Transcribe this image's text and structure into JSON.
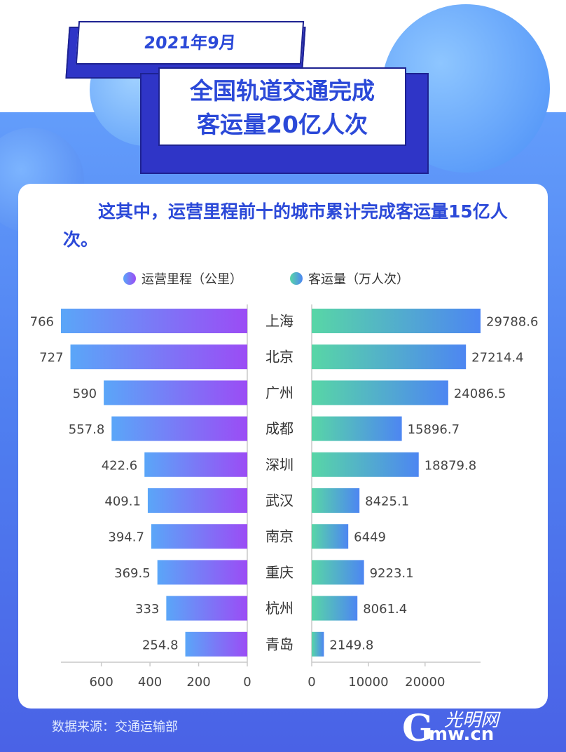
{
  "header": {
    "date": "2021年9月",
    "title_line1": "全国轨道交通完成",
    "title_line2": "客运量20亿人次"
  },
  "subtitle": "这其中，运营里程前十的城市累计完成客运量15亿人次。",
  "legend": {
    "mileage": "运营里程（公里）",
    "passengers": "客运量（万人次）"
  },
  "footer": {
    "source": "数据来源：交通运输部",
    "logo_g": "G",
    "logo_mw": "mw.cn",
    "logo_cn": "光明网"
  },
  "colors": {
    "left_bar_start": "#5aa6f8",
    "left_bar_end": "#9b4cf5",
    "right_bar_start": "#58d6a6",
    "right_bar_end": "#4d86f2",
    "title_blue": "#2b49d8"
  },
  "chart_data": {
    "type": "bar",
    "categories": [
      "上海",
      "北京",
      "广州",
      "成都",
      "深圳",
      "武汉",
      "南京",
      "重庆",
      "杭州",
      "青岛"
    ],
    "series": [
      {
        "name": "运营里程（公里）",
        "values": [
          766,
          727,
          590,
          557.8,
          422.6,
          409.1,
          394.7,
          369.5,
          333,
          254.8
        ],
        "labels": [
          "766",
          "727",
          "590",
          "557.8",
          "422.6",
          "409.1",
          "394.7",
          "369.5",
          "333",
          "254.8"
        ]
      },
      {
        "name": "客运量（万人次）",
        "values": [
          29788.6,
          27214.4,
          24086.5,
          15896.7,
          18879.8,
          8425.1,
          6449,
          9223.1,
          8061.4,
          2149.8
        ],
        "labels": [
          "29788.6",
          "27214.4",
          "24086.5",
          "15896.7",
          "18879.8",
          "8425.1",
          "6449",
          "9223.1",
          "8061.4",
          "2149.8"
        ]
      }
    ],
    "left_axis": {
      "ticks": [
        600,
        400,
        200,
        0
      ],
      "tick_labels": [
        "600",
        "400",
        "200",
        "0"
      ],
      "range": [
        0,
        766
      ]
    },
    "right_axis": {
      "ticks": [
        0,
        10000,
        20000
      ],
      "tick_labels": [
        "0",
        "10000",
        "20000"
      ],
      "range": [
        0,
        29788.6
      ]
    },
    "xlabel": "",
    "ylabel": "",
    "legend_position": "top"
  }
}
